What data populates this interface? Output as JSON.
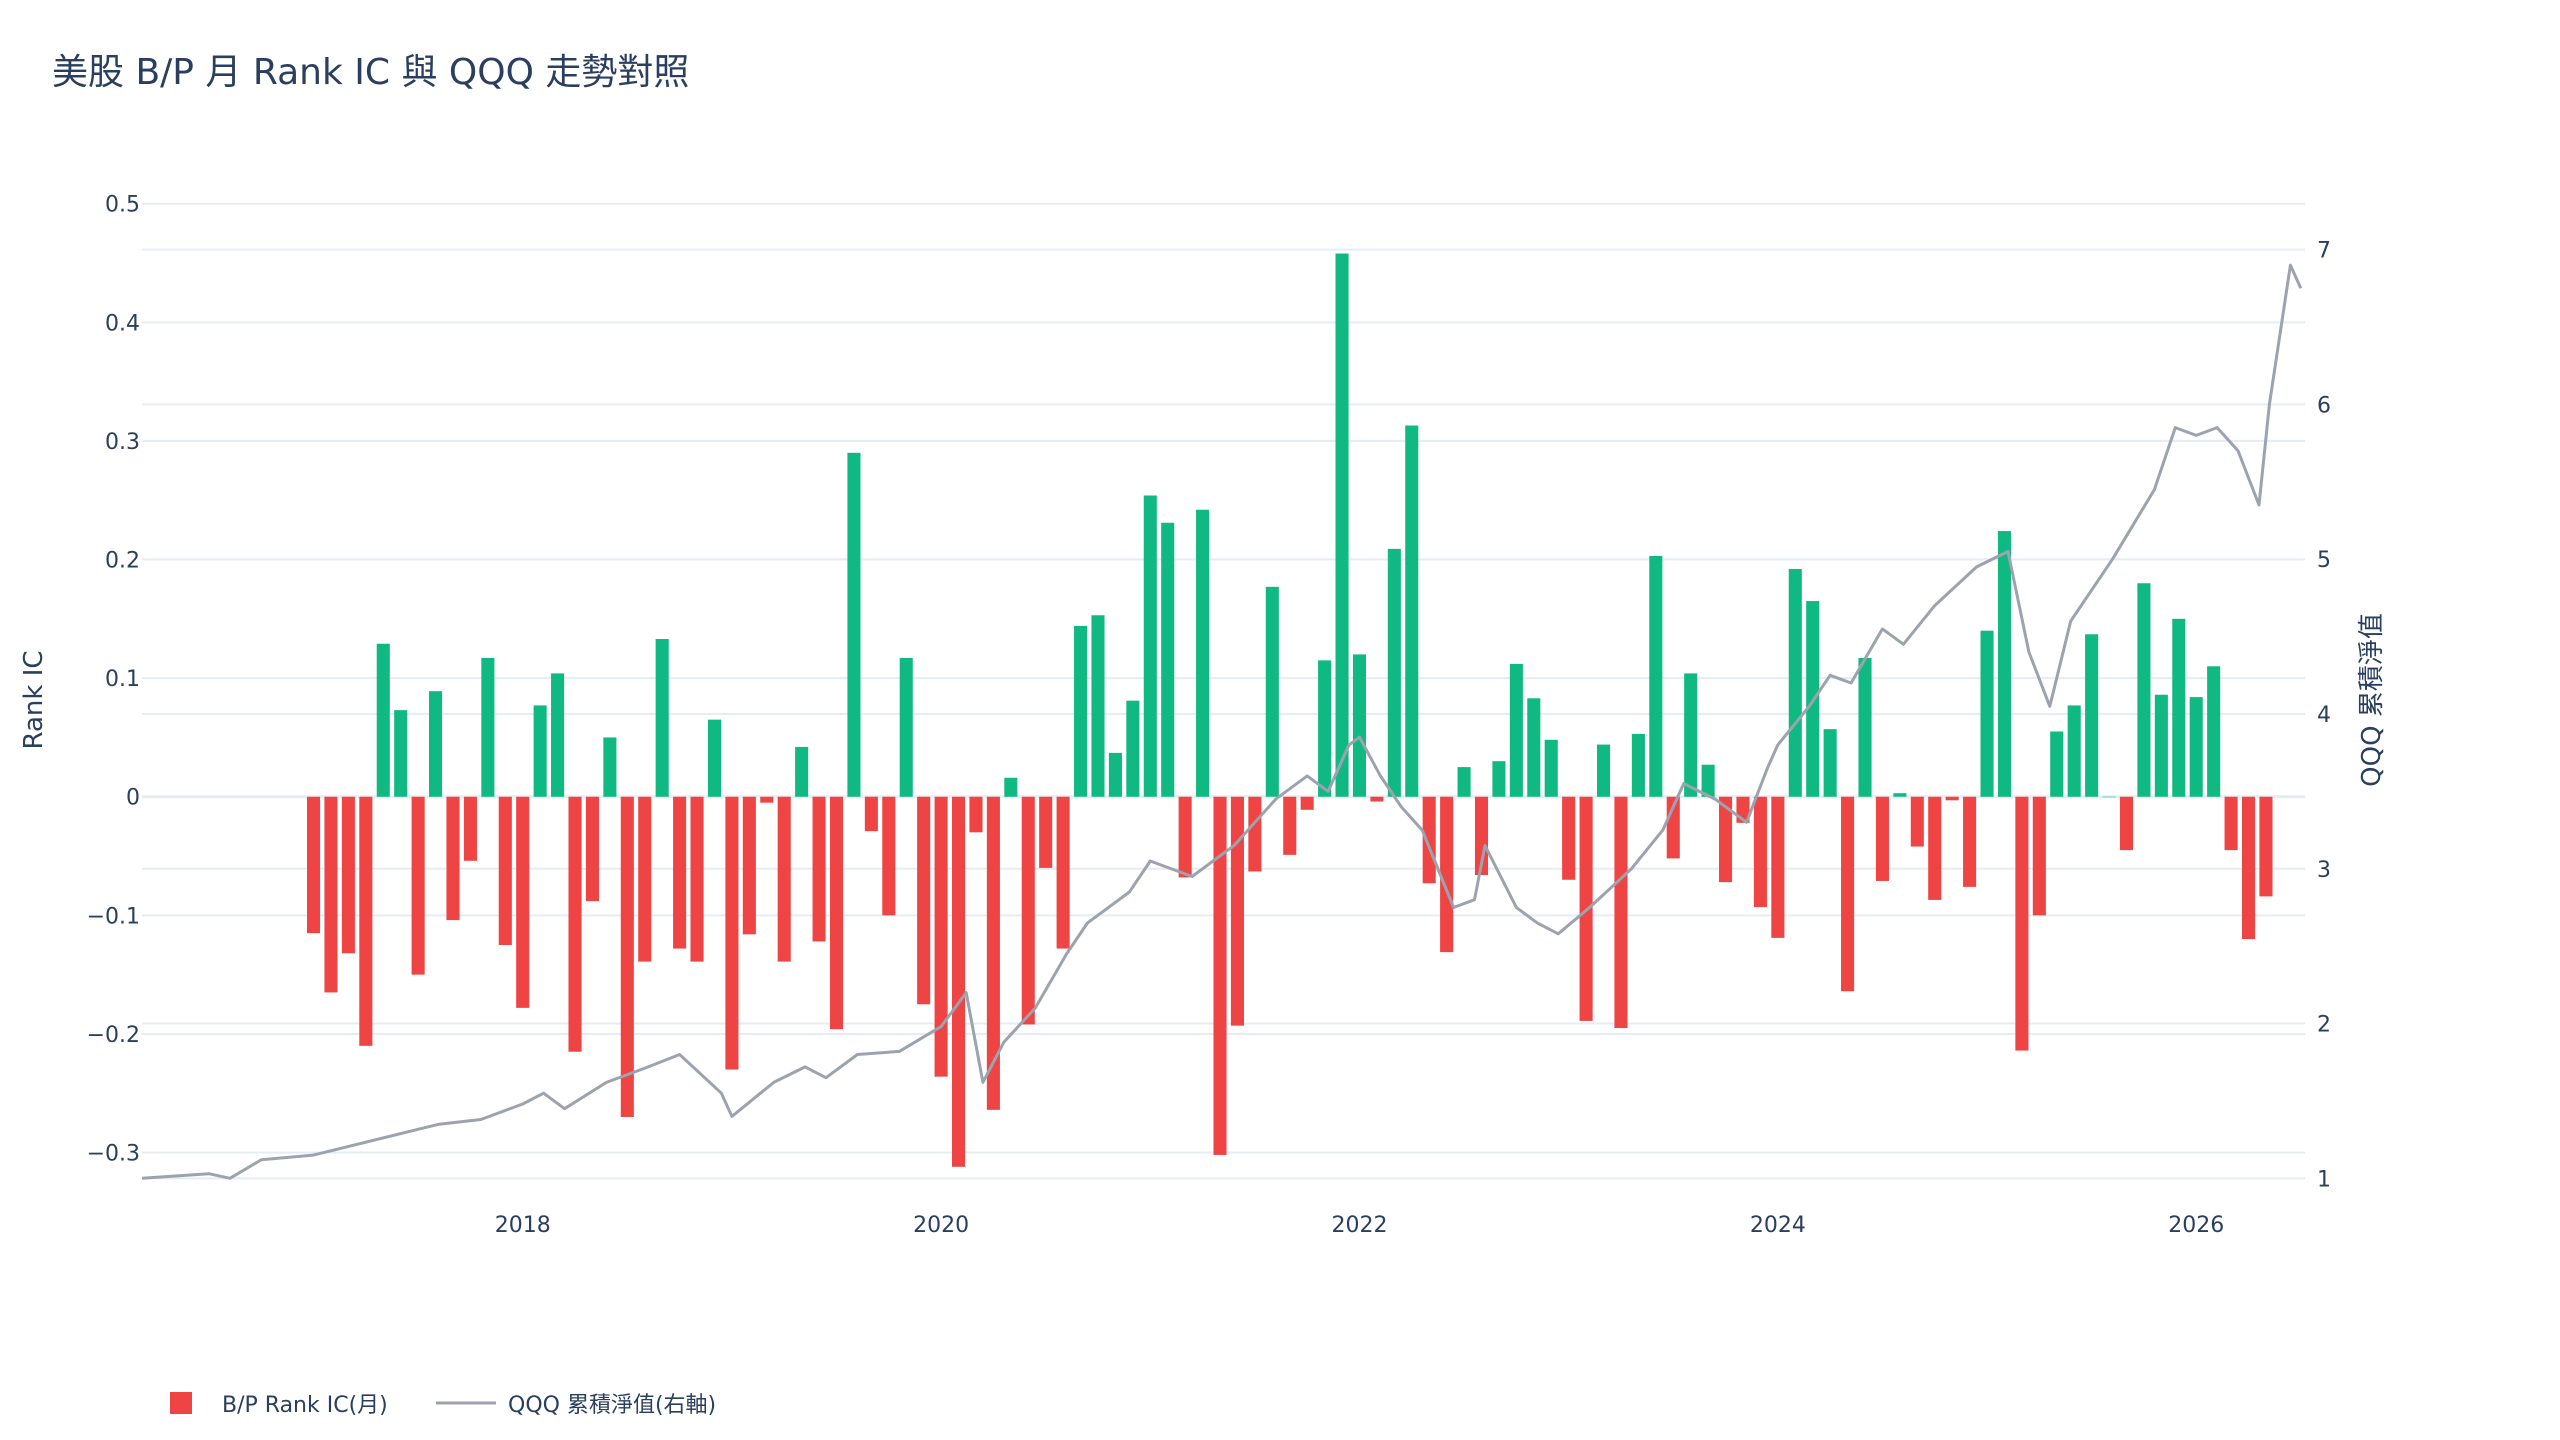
{
  "chart_data": {
    "type": "bar",
    "title": "美股 B/P 月 Rank IC 與 QQQ 走勢對照",
    "xlabel": "",
    "ylabel": "Rank IC",
    "y2label": "QQQ 累積淨值",
    "ylim": [
      -0.34,
      0.52
    ],
    "y2lim": [
      0.86,
      7.45
    ],
    "yticks": [
      -0.3,
      -0.2,
      -0.1,
      0,
      0.1,
      0.2,
      0.3,
      0.4,
      0.5
    ],
    "ytick_labels": [
      "−0.3",
      "−0.2",
      "−0.1",
      "0",
      "0.1",
      "0.2",
      "0.3",
      "0.4",
      "0.5"
    ],
    "y2ticks": [
      1,
      2,
      3,
      4,
      5,
      6,
      7
    ],
    "y2tick_labels": [
      "1",
      "2",
      "3",
      "4",
      "5",
      "6",
      "7"
    ],
    "xlim": [
      2016.18,
      2026.52
    ],
    "xticks": [
      2018,
      2020,
      2022,
      2024,
      2026
    ],
    "xtick_labels": [
      "2018",
      "2020",
      "2022",
      "2024",
      "2026"
    ],
    "grid": true,
    "legend_position": "bottom-left",
    "colors": {
      "positive": "#10b981",
      "negative": "#ef4444",
      "line": "#9ca3af",
      "grid": "#e5ecf6",
      "text": "#2a3f5f"
    },
    "series": [
      {
        "name": "B/P Rank IC(月)",
        "type": "bar",
        "x_start": "2017-01",
        "x_step_months": 1,
        "values": [
          -0.115,
          -0.165,
          -0.132,
          -0.21,
          0.129,
          0.073,
          -0.15,
          0.089,
          -0.104,
          -0.054,
          0.117,
          -0.125,
          -0.178,
          0.077,
          0.104,
          -0.215,
          -0.088,
          0.05,
          -0.27,
          -0.139,
          0.133,
          -0.128,
          -0.139,
          0.065,
          -0.23,
          -0.116,
          -0.005,
          -0.139,
          0.042,
          -0.122,
          -0.196,
          0.29,
          -0.029,
          -0.1,
          0.117,
          -0.175,
          -0.236,
          -0.312,
          -0.03,
          -0.264,
          0.016,
          -0.192,
          -0.06,
          -0.128,
          0.144,
          0.153,
          0.037,
          0.081,
          0.254,
          0.231,
          -0.068,
          0.242,
          -0.302,
          -0.193,
          -0.063,
          0.177,
          -0.049,
          -0.011,
          0.115,
          0.458,
          0.12,
          -0.004,
          0.209,
          0.313,
          -0.073,
          -0.131,
          0.025,
          -0.066,
          0.03,
          0.112,
          0.083,
          0.048,
          -0.07,
          -0.189,
          0.044,
          -0.195,
          0.053,
          0.203,
          -0.052,
          0.104,
          0.027,
          -0.072,
          -0.022,
          -0.093,
          -0.119,
          0.192,
          0.165,
          0.057,
          -0.164,
          0.117,
          -0.071,
          0.003,
          -0.042,
          -0.087,
          -0.003,
          -0.076,
          0.14,
          0.224,
          -0.214,
          -0.1,
          0.055,
          0.077,
          0.137,
          0.0,
          -0.045,
          0.18,
          0.086,
          0.15,
          0.084,
          0.11,
          -0.045,
          -0.12,
          -0.084
        ]
      },
      {
        "name": "QQQ 累積淨值(右軸)",
        "type": "line",
        "axis": "right",
        "points": [
          [
            2016.18,
            1.0
          ],
          [
            2016.5,
            1.03
          ],
          [
            2016.6,
            1.0
          ],
          [
            2016.75,
            1.12
          ],
          [
            2017.0,
            1.15
          ],
          [
            2017.3,
            1.25
          ],
          [
            2017.6,
            1.35
          ],
          [
            2017.8,
            1.38
          ],
          [
            2018.0,
            1.48
          ],
          [
            2018.1,
            1.55
          ],
          [
            2018.2,
            1.45
          ],
          [
            2018.4,
            1.62
          ],
          [
            2018.6,
            1.72
          ],
          [
            2018.75,
            1.8
          ],
          [
            2018.95,
            1.55
          ],
          [
            2019.0,
            1.4
          ],
          [
            2019.2,
            1.62
          ],
          [
            2019.35,
            1.72
          ],
          [
            2019.45,
            1.65
          ],
          [
            2019.6,
            1.8
          ],
          [
            2019.8,
            1.82
          ],
          [
            2020.0,
            1.98
          ],
          [
            2020.12,
            2.2
          ],
          [
            2020.2,
            1.62
          ],
          [
            2020.3,
            1.88
          ],
          [
            2020.45,
            2.1
          ],
          [
            2020.6,
            2.45
          ],
          [
            2020.7,
            2.65
          ],
          [
            2020.9,
            2.85
          ],
          [
            2021.0,
            3.05
          ],
          [
            2021.2,
            2.95
          ],
          [
            2021.4,
            3.15
          ],
          [
            2021.6,
            3.45
          ],
          [
            2021.75,
            3.6
          ],
          [
            2021.85,
            3.5
          ],
          [
            2021.95,
            3.8
          ],
          [
            2022.0,
            3.85
          ],
          [
            2022.1,
            3.6
          ],
          [
            2022.2,
            3.4
          ],
          [
            2022.3,
            3.25
          ],
          [
            2022.45,
            2.75
          ],
          [
            2022.55,
            2.8
          ],
          [
            2022.6,
            3.15
          ],
          [
            2022.75,
            2.75
          ],
          [
            2022.85,
            2.65
          ],
          [
            2022.95,
            2.58
          ],
          [
            2023.1,
            2.75
          ],
          [
            2023.3,
            3.0
          ],
          [
            2023.45,
            3.25
          ],
          [
            2023.55,
            3.55
          ],
          [
            2023.7,
            3.45
          ],
          [
            2023.85,
            3.3
          ],
          [
            2023.95,
            3.65
          ],
          [
            2024.0,
            3.8
          ],
          [
            2024.15,
            4.05
          ],
          [
            2024.25,
            4.25
          ],
          [
            2024.35,
            4.2
          ],
          [
            2024.5,
            4.55
          ],
          [
            2024.6,
            4.45
          ],
          [
            2024.75,
            4.7
          ],
          [
            2024.95,
            4.95
          ],
          [
            2025.1,
            5.05
          ],
          [
            2025.2,
            4.4
          ],
          [
            2025.3,
            4.05
          ],
          [
            2025.4,
            4.6
          ],
          [
            2025.6,
            5.0
          ],
          [
            2025.8,
            5.45
          ],
          [
            2025.9,
            5.85
          ],
          [
            2026.0,
            5.8
          ],
          [
            2026.1,
            5.85
          ],
          [
            2026.2,
            5.7
          ],
          [
            2026.3,
            5.35
          ],
          [
            2026.35,
            6.0
          ],
          [
            2026.45,
            6.9
          ],
          [
            2026.5,
            6.75
          ]
        ]
      }
    ]
  },
  "legend": [
    {
      "label": "B/P Rank IC(月)",
      "swatch": "bar"
    },
    {
      "label": "QQQ 累積淨值(右軸)",
      "swatch": "line"
    }
  ]
}
